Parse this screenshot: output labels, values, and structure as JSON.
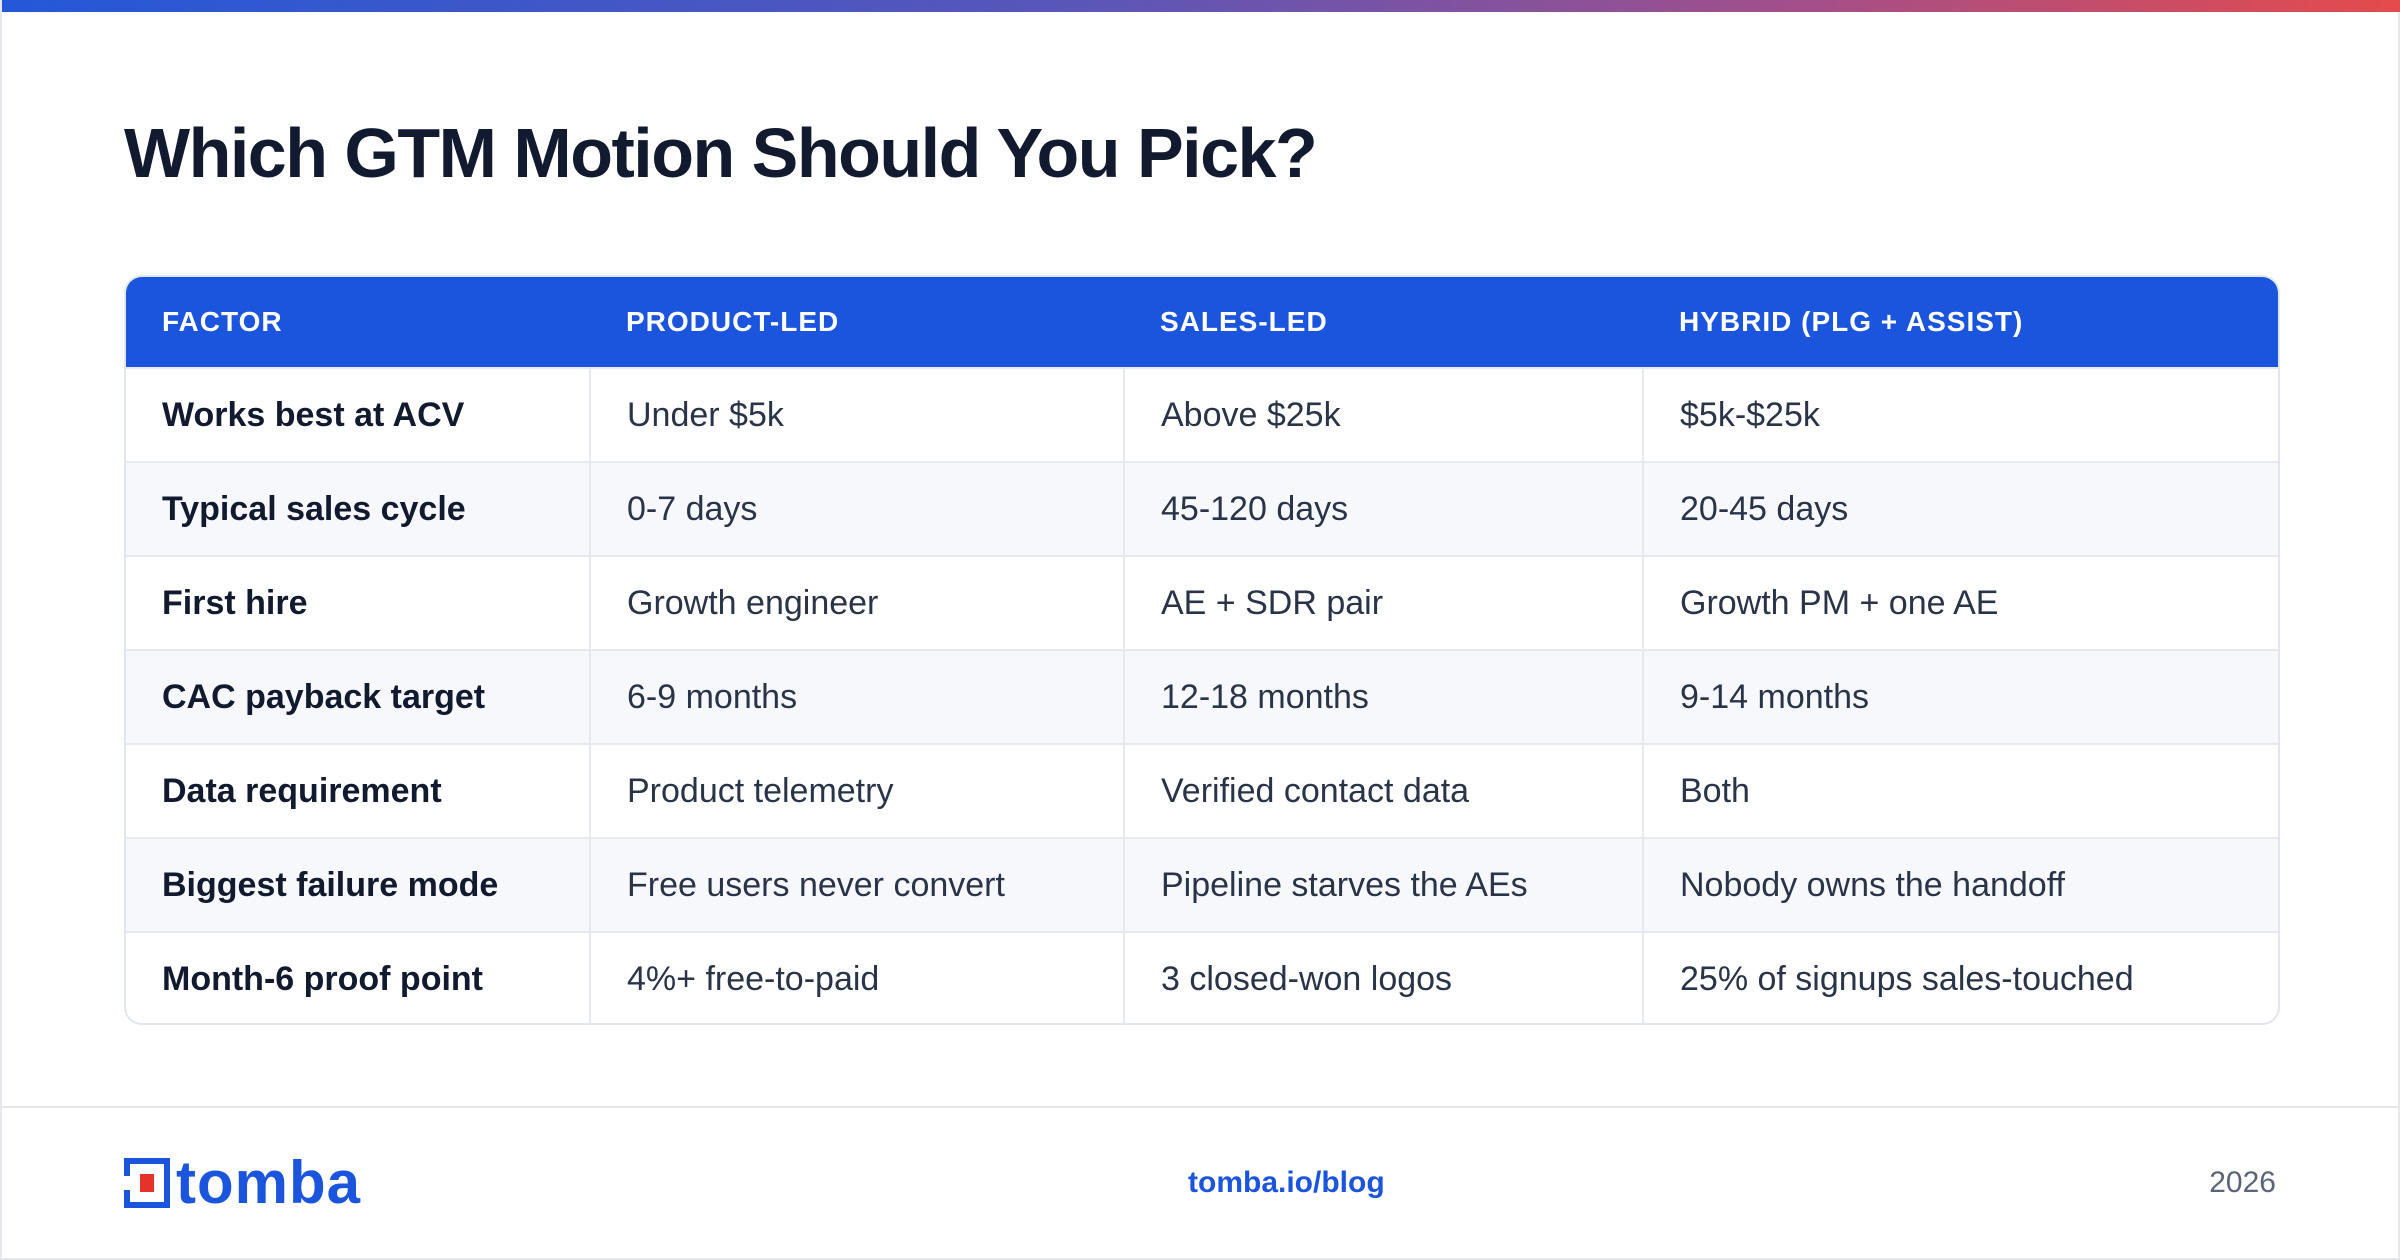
{
  "title": "Which GTM Motion Should You Pick?",
  "table": {
    "headers": [
      "FACTOR",
      "PRODUCT-LED",
      "SALES-LED",
      "HYBRID (PLG + ASSIST)"
    ],
    "rows": [
      [
        "Works best at ACV",
        "Under $5k",
        "Above $25k",
        "$5k-$25k"
      ],
      [
        "Typical sales cycle",
        "0-7 days",
        "45-120 days",
        "20-45 days"
      ],
      [
        "First hire",
        "Growth engineer",
        "AE + SDR pair",
        "Growth PM + one AE"
      ],
      [
        "CAC payback target",
        "6-9 months",
        "12-18 months",
        "9-14 months"
      ],
      [
        "Data requirement",
        "Product telemetry",
        "Verified contact data",
        "Both"
      ],
      [
        "Biggest failure mode",
        "Free users never convert",
        "Pipeline starves the AEs",
        "Nobody owns the handoff"
      ],
      [
        "Month-6 proof point",
        "4%+ free-to-paid",
        "3 closed-won logos",
        "25% of signups sales-touched"
      ]
    ]
  },
  "footer": {
    "logo_text": "tomba",
    "link": "tomba.io/blog",
    "year": "2026"
  },
  "colors": {
    "accent": "#1b55de",
    "title": "#111a2e",
    "body_text": "#2a3448",
    "logo_red": "#e5332a"
  },
  "icons": {
    "logo": "tomba-logo-icon"
  }
}
